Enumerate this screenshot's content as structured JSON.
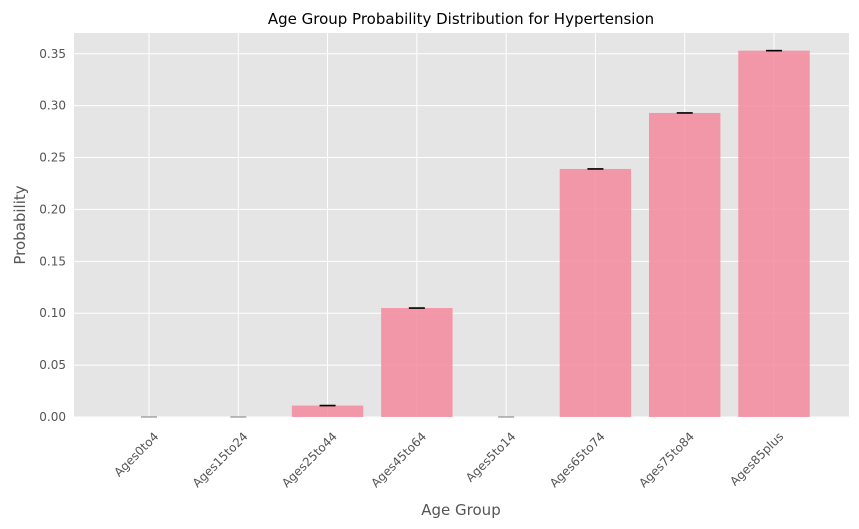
{
  "chart_data": {
    "type": "bar",
    "title": "Age Group Probability Distribution for Hypertension",
    "xlabel": "Age Group",
    "ylabel": "Probability",
    "categories": [
      "Ages0to4",
      "Ages15to24",
      "Ages25to44",
      "Ages45to64",
      "Ages5to14",
      "Ages65to74",
      "Ages75to84",
      "Ages85plus"
    ],
    "values": [
      0.0,
      0.0,
      0.011,
      0.105,
      0.0,
      0.239,
      0.293,
      0.353
    ],
    "error_bars": [
      0.0,
      0.0,
      0.0,
      0.0,
      0.0,
      0.0,
      0.0,
      0.0
    ],
    "ylim": [
      0,
      0.37
    ],
    "yticks": [
      "0.00",
      "0.05",
      "0.10",
      "0.15",
      "0.20",
      "0.25",
      "0.30",
      "0.35"
    ],
    "grid": true,
    "colors": {
      "bar": "#f4899c",
      "plot_bg": "#e5e5e5",
      "grid": "#ffffff",
      "error": "#000000"
    }
  }
}
